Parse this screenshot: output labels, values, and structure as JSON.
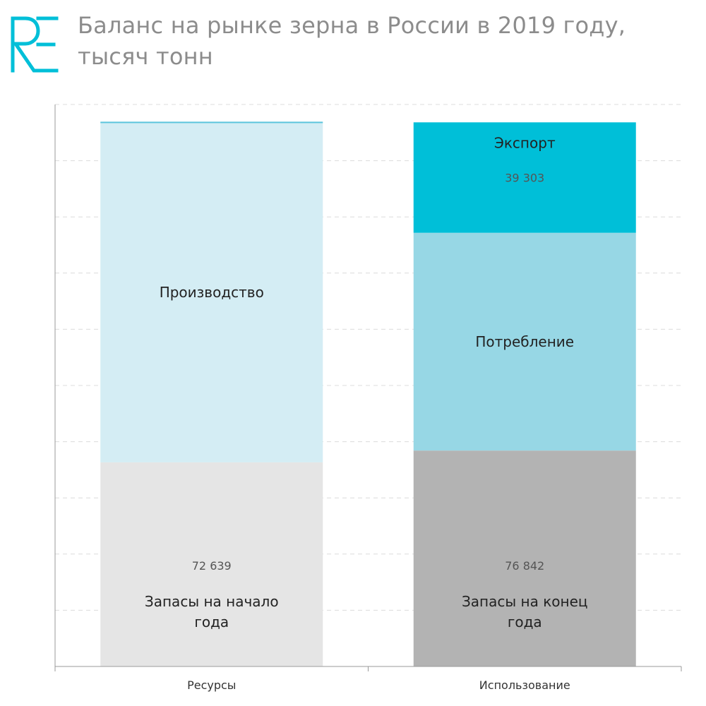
{
  "header": {
    "logo_text": "RE",
    "title_line1": "Баланс на рынке зерна в России в 2019 году,",
    "title_line2": "тысяч тонн"
  },
  "chart_data": {
    "type": "bar",
    "stacked": true,
    "title": "Баланс на рынке зерна в России в 2019 году, тысяч тонн",
    "xlabel": "",
    "ylabel": "",
    "categories": [
      "Ресурсы",
      "Использование"
    ],
    "ylim": [
      0,
      200000
    ],
    "grid": true,
    "legend": "none",
    "series": [
      {
        "name": "Запасы на начало года",
        "values": [
          72639,
          null
        ],
        "value_labels": [
          "72 639",
          ""
        ],
        "label_lines": [
          "Запасы на начало",
          "года"
        ],
        "color": "#e5e5e5"
      },
      {
        "name": "Производство",
        "values": [
          121000,
          null
        ],
        "value_labels": [
          "",
          ""
        ],
        "label_lines": [
          "Производство"
        ],
        "color": "#d4edf4"
      },
      {
        "name": "Запасы на конец года",
        "values": [
          null,
          76842
        ],
        "value_labels": [
          "",
          "76 842"
        ],
        "label_lines": [
          "Запасы на конец",
          "года"
        ],
        "color": "#b3b3b3"
      },
      {
        "name": "Потребление",
        "values": [
          null,
          77500
        ],
        "value_labels": [
          "",
          ""
        ],
        "label_lines": [
          "Потребление"
        ],
        "color": "#97d7e5"
      },
      {
        "name": "Экспорт",
        "values": [
          null,
          39303
        ],
        "value_labels": [
          "",
          "39 303"
        ],
        "label_lines": [
          "Экспорт"
        ],
        "color": "#00bfd8"
      }
    ],
    "colors": {
      "grid": "#dcdcdc",
      "axis": "#9a9a9a",
      "resources_top_line": "#5bc4dc",
      "logo": "#00bfd8"
    }
  }
}
